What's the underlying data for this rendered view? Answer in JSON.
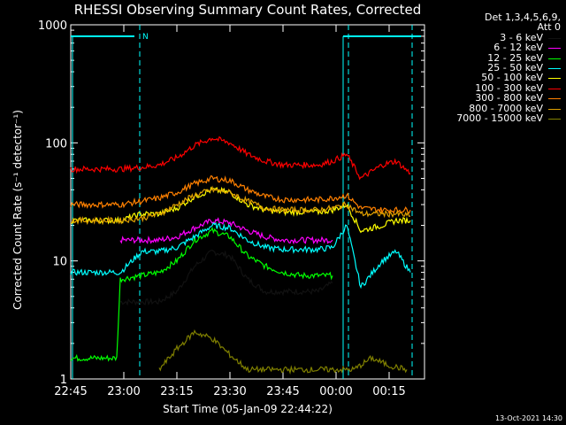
{
  "chart_data": {
    "type": "line",
    "title": "RHESSI Observing Summary Count Rates, Corrected",
    "ylabel": "Corrected Count Rate (s⁻¹ detector⁻¹)",
    "xlabel": "Start Time (05-Jan-09 22:44:22)",
    "yscale": "log",
    "ylim": [
      1,
      1000
    ],
    "yticks": [
      1,
      10,
      100,
      1000
    ],
    "ytick_labels": [
      "1",
      "10",
      "100",
      "1000"
    ],
    "x_unit": "minutes",
    "xlim": [
      0,
      100
    ],
    "xticks": [
      0,
      15,
      30,
      45,
      60,
      75,
      90
    ],
    "xtick_labels": [
      "22:45",
      "23:00",
      "23:15",
      "23:30",
      "23:45",
      "00:00",
      "00:15"
    ],
    "legend_header": [
      "Det 1,3,4,5,6,9,",
      "Att 0"
    ],
    "legend_position": "right",
    "shaded_attenuator_line": {
      "label": "N",
      "color": "#00ffff"
    },
    "markers": [
      {
        "x": 19.5,
        "label": ""
      },
      {
        "x": 78.5,
        "label": ""
      },
      {
        "x": 96.5,
        "label": ""
      }
    ],
    "series": [
      {
        "name": "3 - 6 keV",
        "color": "#000000",
        "x": [
          14,
          20,
          25,
          30,
          35,
          40,
          45,
          50,
          55,
          60,
          65,
          70,
          74
        ],
        "y": [
          4.5,
          4.5,
          4.5,
          5.5,
          9,
          12,
          11,
          7,
          5.5,
          5.5,
          5.5,
          5.5,
          6.5
        ]
      },
      {
        "name": "6 - 12 keV",
        "color": "#ff00ff",
        "x": [
          14,
          20,
          25,
          30,
          35,
          40,
          45,
          50,
          55,
          60,
          65,
          70,
          74
        ],
        "y": [
          15,
          15,
          15,
          16,
          19,
          22,
          21,
          18,
          16,
          15,
          15,
          15,
          15
        ]
      },
      {
        "name": "12 - 25 keV",
        "color": "#00ff00",
        "x": [
          0,
          13,
          14,
          20,
          25,
          30,
          35,
          40,
          45,
          50,
          55,
          60,
          65,
          70,
          74
        ],
        "y": [
          1.5,
          1.5,
          7,
          7.5,
          8,
          10,
          15,
          18,
          16,
          11,
          9,
          8,
          7.5,
          7.5,
          7.5
        ]
      },
      {
        "name": "25 - 50 keV",
        "color": "#00ffff",
        "x": [
          0,
          14,
          20,
          25,
          30,
          35,
          40,
          45,
          50,
          55,
          60,
          65,
          70,
          74,
          78,
          82,
          88,
          92,
          96
        ],
        "y": [
          8,
          8,
          12,
          12,
          13,
          16,
          20,
          19,
          15,
          13,
          12.5,
          12.5,
          12.5,
          13,
          20,
          6,
          10,
          12,
          8
        ]
      },
      {
        "name": "50 - 100 keV",
        "color": "#ffff00",
        "x": [
          0,
          14,
          20,
          25,
          30,
          35,
          40,
          45,
          50,
          55,
          60,
          65,
          70,
          74,
          78,
          82,
          88,
          92,
          96
        ],
        "y": [
          22,
          22,
          25,
          25,
          28,
          35,
          40,
          38,
          30,
          27,
          26,
          26,
          26,
          27,
          30,
          18,
          20,
          22,
          22
        ]
      },
      {
        "name": "100 - 300 keV",
        "color": "#ff0000",
        "x": [
          0,
          14,
          20,
          25,
          30,
          35,
          40,
          45,
          50,
          55,
          60,
          65,
          70,
          74,
          78,
          82,
          88,
          92,
          96
        ],
        "y": [
          60,
          60,
          62,
          65,
          75,
          95,
          110,
          100,
          80,
          70,
          65,
          65,
          65,
          70,
          80,
          50,
          65,
          70,
          55
        ]
      },
      {
        "name": "300 - 800 keV",
        "color": "#ff8000",
        "x": [
          0,
          14,
          20,
          25,
          30,
          35,
          40,
          45,
          50,
          55,
          60,
          65,
          70,
          74,
          78,
          82,
          88,
          92,
          96
        ],
        "y": [
          30,
          30,
          32,
          34,
          38,
          45,
          50,
          48,
          40,
          35,
          33,
          33,
          33,
          34,
          36,
          28,
          27,
          27,
          27
        ]
      },
      {
        "name": "800 - 7000 keV",
        "color": "#e0a000",
        "x": [
          0,
          14,
          20,
          25,
          30,
          35,
          40,
          45,
          50,
          55,
          60,
          65,
          70,
          74,
          78,
          82,
          88,
          92,
          96
        ],
        "y": [
          22,
          22,
          23,
          25,
          30,
          36,
          40,
          38,
          32,
          28,
          27,
          27,
          27,
          28,
          30,
          25,
          25,
          25,
          24
        ]
      },
      {
        "name": "7000 - 15000 keV",
        "color": "#808000",
        "x": [
          25,
          30,
          35,
          40,
          45,
          50,
          80,
          85,
          90,
          95
        ],
        "y": [
          1.2,
          1.8,
          2.5,
          2.2,
          1.6,
          1.2,
          1.2,
          1.5,
          1.3,
          1.2
        ]
      }
    ],
    "legend_lines": [
      {
        "label": "3 - 6 keV",
        "color": "#000000"
      },
      {
        "label": "6 - 12 keV",
        "color": "#ff00ff"
      },
      {
        "label": "12 - 25 keV",
        "color": "#00ff00"
      },
      {
        "label": "25 - 50 keV",
        "color": "#00ffff"
      },
      {
        "label": "50 - 100 keV",
        "color": "#ffff00"
      },
      {
        "label": "100 - 300 keV",
        "color": "#ff0000"
      },
      {
        "label": "300 - 800 keV",
        "color": "#ff8000"
      },
      {
        "label": "800 - 7000 keV",
        "color": "#e0a000"
      },
      {
        "label": "7000 - 15000 keV",
        "color": "#808000"
      }
    ]
  },
  "footer": {
    "timestamp": "13-Oct-2021 14:30"
  }
}
